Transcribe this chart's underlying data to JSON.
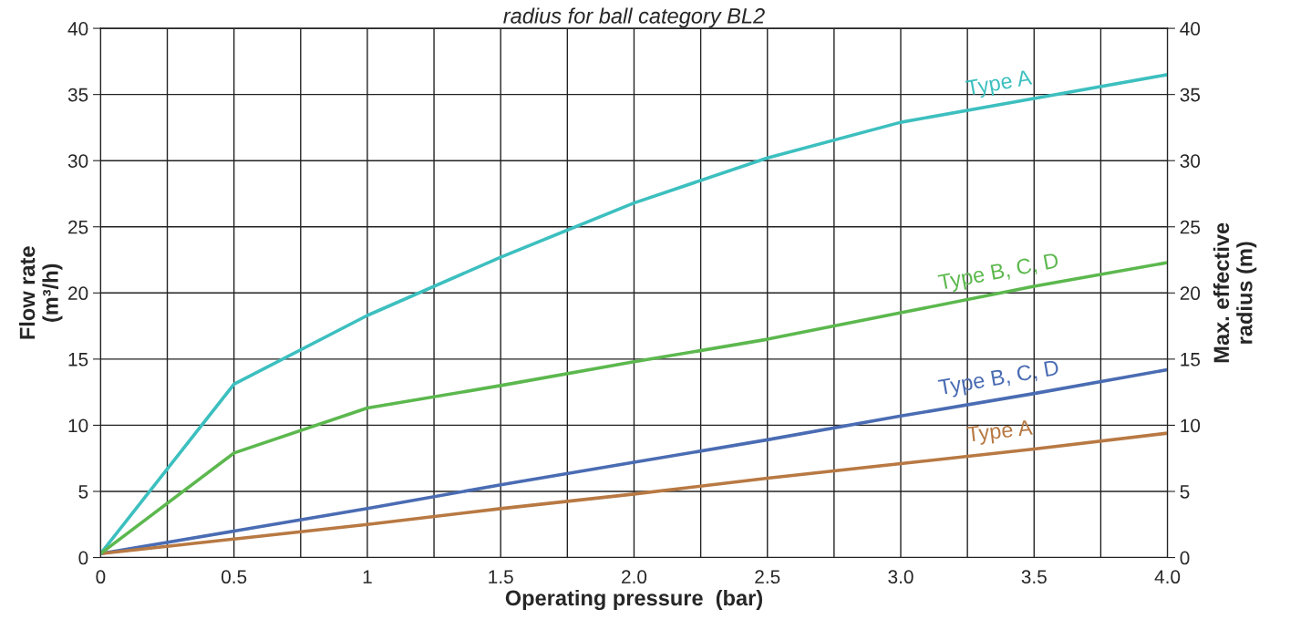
{
  "chart_data": {
    "type": "line",
    "title": "radius for ball category BL2",
    "xlabel": "Operating pressure  (bar)",
    "ylabel": "Flow rate\n(m³/h)",
    "y2label": "Max. effective\nradius (m)",
    "x": [
      0,
      0.5,
      1,
      1.5,
      2,
      2.5,
      3,
      3.5,
      4
    ],
    "series": [
      {
        "name": "Type A",
        "color": "#3dbfbf",
        "axis": "y2",
        "values": [
          0.3,
          13.1,
          18.3,
          22.7,
          26.8,
          30.2,
          32.9,
          34.7,
          36.5
        ]
      },
      {
        "name": "Type B, C, D",
        "color": "#5cb84e",
        "axis": "y2",
        "values": [
          0.3,
          7.9,
          11.3,
          13.0,
          14.8,
          16.5,
          18.5,
          20.5,
          22.3
        ]
      },
      {
        "name": "Type B, C, D",
        "color": "#4a6cb3",
        "values": [
          0.3,
          2.0,
          3.7,
          5.5,
          7.2,
          8.9,
          10.7,
          12.4,
          14.2
        ]
      },
      {
        "name": "Type A",
        "color": "#b87943",
        "values": [
          0.3,
          1.4,
          2.5,
          3.7,
          4.8,
          6.0,
          7.1,
          8.2,
          9.4
        ]
      }
    ],
    "xlim": [
      0,
      4
    ],
    "xticks": [
      0,
      {
        "value": 0.25,
        "label": null
      },
      0.5,
      {
        "value": 0.75,
        "label": null
      },
      1,
      {
        "value": 1.25,
        "label": null
      },
      1.5,
      {
        "value": 1.75,
        "label": null
      },
      {
        "value": 2,
        "label": "2.0"
      },
      {
        "value": 2.25,
        "label": null
      },
      2.5,
      {
        "value": 2.75,
        "label": null
      },
      {
        "value": 3,
        "label": "3.0"
      },
      {
        "value": 3.25,
        "label": null
      },
      3.5,
      {
        "value": 3.75,
        "label": null
      },
      {
        "value": 4,
        "label": "4.0"
      }
    ],
    "ylim": [
      0,
      40
    ],
    "yticks": [
      0,
      5,
      10,
      15,
      20,
      25,
      30,
      35,
      40
    ],
    "y2lim": [
      0,
      40
    ],
    "y2ticks": [
      0,
      5,
      10,
      15,
      20,
      25,
      30,
      35,
      40
    ],
    "grid": true,
    "marker": "none",
    "line_style": "solid",
    "legend": false
  }
}
